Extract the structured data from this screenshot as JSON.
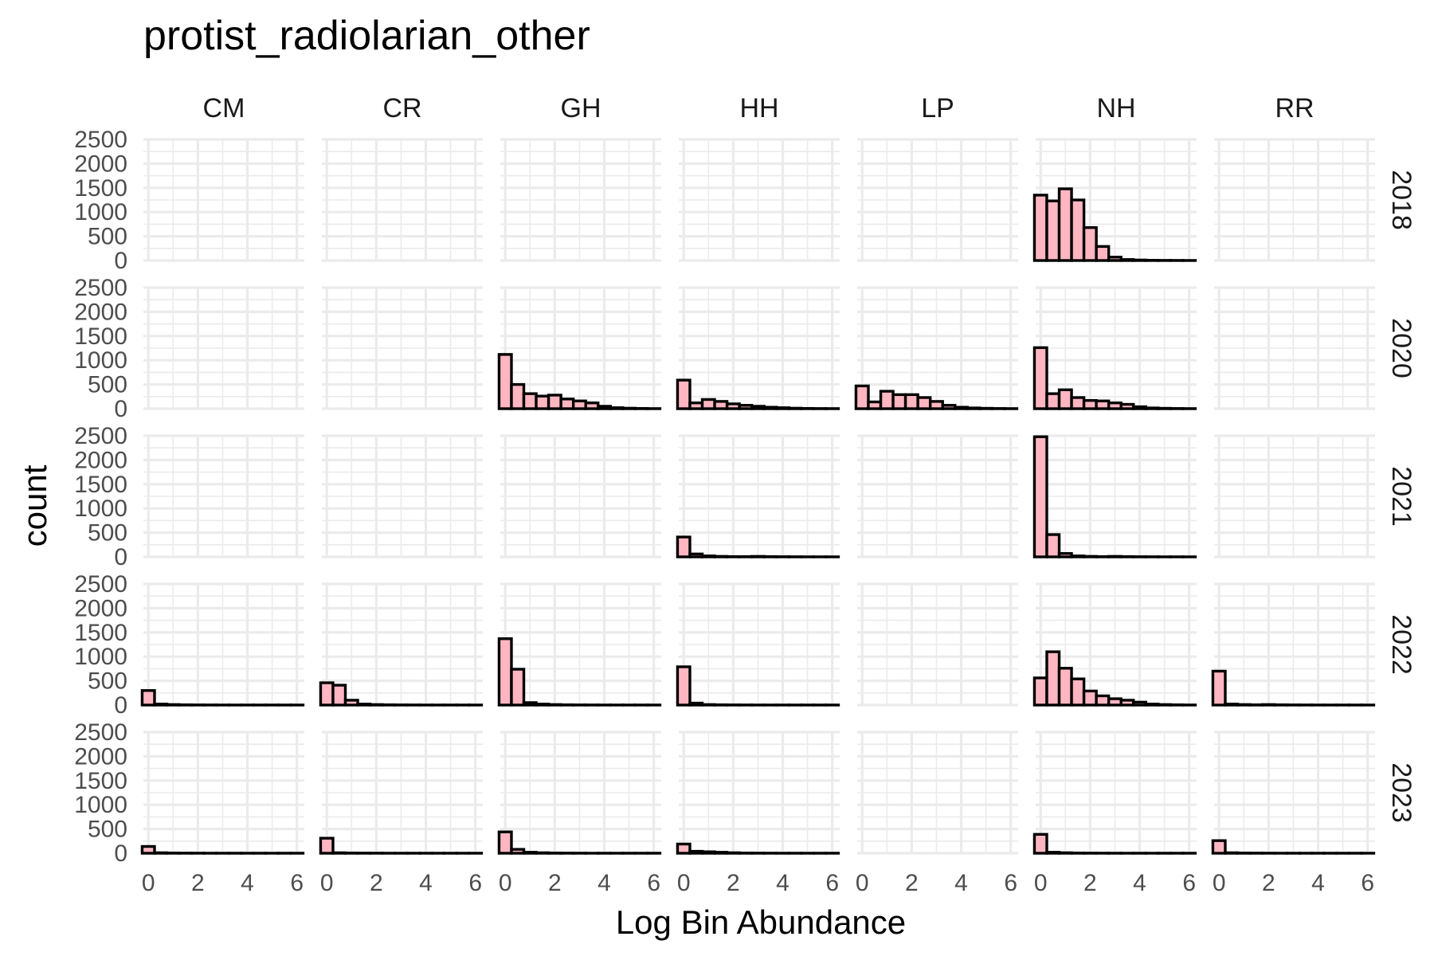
{
  "chart_data": {
    "type": "bar",
    "title": "protist_radiolarian_other",
    "xlabel": "Log Bin Abundance",
    "ylabel": "count",
    "xlim": [
      -0.2,
      6.3
    ],
    "ylim": [
      0,
      2500
    ],
    "x_ticks": [
      0,
      2,
      4,
      6
    ],
    "y_ticks": [
      0,
      500,
      1000,
      1500,
      2000,
      2500
    ],
    "grid": true,
    "bar_color": "#ffb6c1",
    "bar_edge_color": "#000000",
    "bin_width": 0.5,
    "bin_starts": [
      -0.25,
      0.25,
      0.75,
      1.25,
      1.75,
      2.25,
      2.75,
      3.25,
      3.75,
      4.25,
      4.75,
      5.25,
      5.75
    ],
    "sites": [
      "CM",
      "CR",
      "GH",
      "HH",
      "LP",
      "NH",
      "RR"
    ],
    "years": [
      "2018",
      "2020",
      "2021",
      "2022",
      "2023"
    ],
    "panels": [
      {
        "site": "NH",
        "year": "2018",
        "counts": [
          1350,
          1230,
          1480,
          1250,
          680,
          290,
          70,
          20,
          10,
          5,
          3,
          2,
          1
        ]
      },
      {
        "site": "GH",
        "year": "2020",
        "counts": [
          1120,
          500,
          310,
          260,
          280,
          200,
          160,
          120,
          50,
          20,
          10,
          5,
          2
        ]
      },
      {
        "site": "HH",
        "year": "2020",
        "counts": [
          590,
          120,
          190,
          150,
          100,
          70,
          50,
          30,
          20,
          10,
          5,
          3,
          2
        ]
      },
      {
        "site": "LP",
        "year": "2020",
        "counts": [
          470,
          140,
          360,
          290,
          290,
          230,
          150,
          70,
          30,
          15,
          8,
          4,
          2
        ]
      },
      {
        "site": "NH",
        "year": "2020",
        "counts": [
          1260,
          310,
          390,
          230,
          170,
          160,
          120,
          90,
          40,
          15,
          8,
          4,
          2
        ]
      },
      {
        "site": "HH",
        "year": "2021",
        "counts": [
          410,
          60,
          20,
          10,
          5,
          5,
          10,
          5,
          3,
          2,
          1,
          1,
          1
        ]
      },
      {
        "site": "NH",
        "year": "2021",
        "counts": [
          2480,
          460,
          70,
          20,
          10,
          5,
          10,
          5,
          3,
          2,
          1,
          1,
          1
        ]
      },
      {
        "site": "CM",
        "year": "2022",
        "counts": [
          300,
          20,
          10,
          5,
          3,
          2,
          1,
          1,
          1,
          1,
          1,
          1,
          1
        ]
      },
      {
        "site": "CR",
        "year": "2022",
        "counts": [
          460,
          410,
          100,
          20,
          10,
          5,
          3,
          2,
          1,
          1,
          1,
          1,
          1
        ]
      },
      {
        "site": "GH",
        "year": "2022",
        "counts": [
          1370,
          740,
          50,
          20,
          10,
          5,
          3,
          2,
          1,
          1,
          1,
          1,
          1
        ]
      },
      {
        "site": "HH",
        "year": "2022",
        "counts": [
          790,
          40,
          10,
          5,
          3,
          2,
          1,
          1,
          1,
          1,
          1,
          1,
          1
        ]
      },
      {
        "site": "NH",
        "year": "2022",
        "counts": [
          560,
          1100,
          760,
          540,
          290,
          190,
          130,
          100,
          60,
          20,
          10,
          5,
          2
        ]
      },
      {
        "site": "RR",
        "year": "2022",
        "counts": [
          700,
          20,
          10,
          5,
          10,
          5,
          3,
          2,
          1,
          1,
          1,
          1,
          1
        ]
      },
      {
        "site": "CM",
        "year": "2023",
        "counts": [
          140,
          10,
          5,
          3,
          2,
          1,
          1,
          1,
          1,
          1,
          1,
          1,
          1
        ]
      },
      {
        "site": "CR",
        "year": "2023",
        "counts": [
          310,
          10,
          5,
          3,
          2,
          1,
          1,
          1,
          1,
          1,
          1,
          1,
          1
        ]
      },
      {
        "site": "GH",
        "year": "2023",
        "counts": [
          440,
          80,
          20,
          10,
          5,
          3,
          2,
          1,
          1,
          1,
          1,
          1,
          1
        ]
      },
      {
        "site": "HH",
        "year": "2023",
        "counts": [
          190,
          40,
          30,
          20,
          10,
          5,
          3,
          2,
          1,
          1,
          1,
          1,
          1
        ]
      },
      {
        "site": "NH",
        "year": "2023",
        "counts": [
          390,
          20,
          10,
          5,
          3,
          2,
          1,
          1,
          1,
          1,
          1,
          1,
          1
        ]
      },
      {
        "site": "RR",
        "year": "2023",
        "counts": [
          260,
          10,
          5,
          3,
          2,
          1,
          1,
          1,
          1,
          1,
          1,
          1,
          1
        ]
      }
    ]
  }
}
